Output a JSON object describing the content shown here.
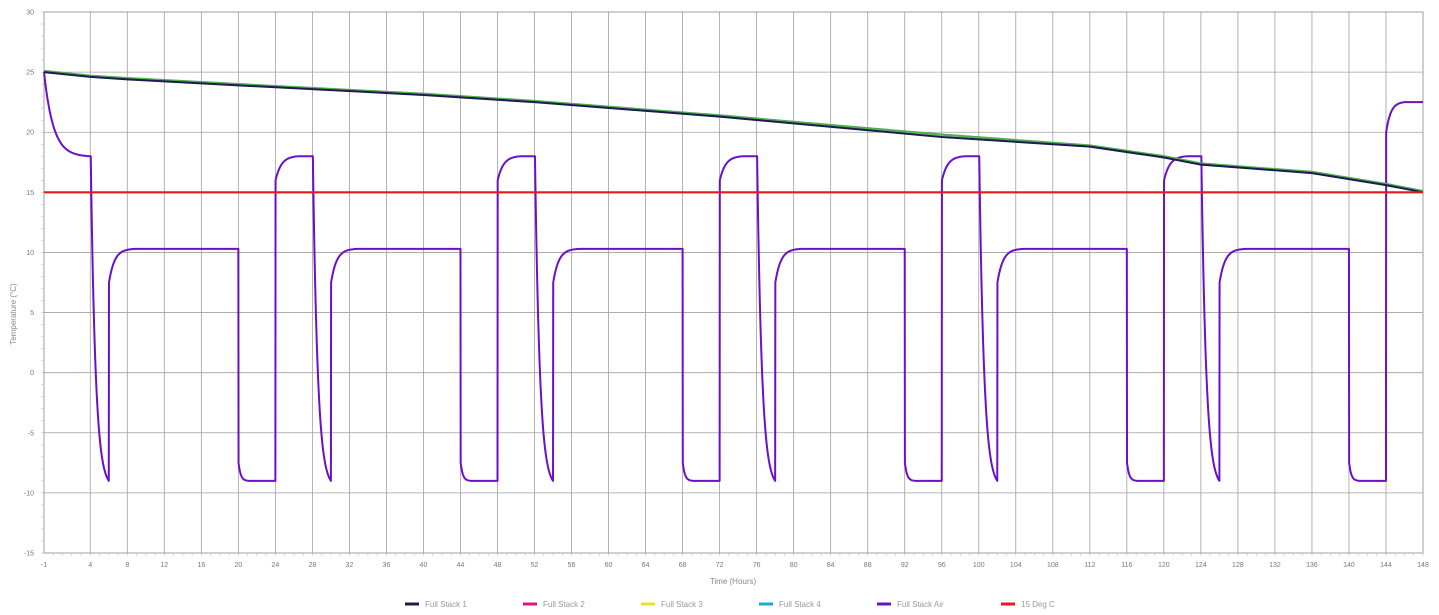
{
  "chart_data": {
    "type": "line",
    "title": "",
    "xlabel": "Time (Hours)",
    "ylabel": "Temperature (°C)",
    "xlim": [
      -1,
      148
    ],
    "ylim": [
      -15,
      30
    ],
    "x_ticks": [
      "-1",
      "4",
      "8",
      "12",
      "16",
      "20",
      "24",
      "28",
      "32",
      "36",
      "40",
      "44",
      "48",
      "52",
      "56",
      "60",
      "64",
      "68",
      "72",
      "76",
      "80",
      "84",
      "88",
      "92",
      "96",
      "100",
      "104",
      "108",
      "112",
      "116",
      "120",
      "124",
      "128",
      "132",
      "136",
      "140",
      "144",
      "148"
    ],
    "y_ticks": [
      "30",
      "25",
      "20",
      "15",
      "10",
      "5",
      "0",
      "-5",
      "-10",
      "-15"
    ],
    "grid": true,
    "legend_position": "bottom",
    "legend": [
      {
        "name": "Full Stack 1",
        "color": "#1f1a4e"
      },
      {
        "name": "Full Stack 2",
        "color": "#e0147c"
      },
      {
        "name": "Full Stack 3",
        "color": "#f0e020"
      },
      {
        "name": "Full Stack 4",
        "color": "#1aa8d8"
      },
      {
        "name": "Full Stack Air",
        "color": "#6a10c8"
      },
      {
        "name": "15 Deg C",
        "color": "#e41a1c"
      }
    ],
    "stack_green": {
      "color": "#4caf50",
      "points": [
        [
          -1,
          25.1
        ],
        [
          4,
          24.7
        ],
        [
          8,
          24.5
        ],
        [
          20,
          24.0
        ],
        [
          40,
          23.2
        ],
        [
          52,
          22.6
        ],
        [
          72,
          21.4
        ],
        [
          96,
          19.8
        ],
        [
          112,
          18.9
        ],
        [
          120,
          18.0
        ],
        [
          124,
          17.4
        ],
        [
          136,
          16.7
        ],
        [
          144,
          15.7
        ],
        [
          148,
          15.1
        ]
      ]
    },
    "stack_dark": {
      "color": "#1f1a4e",
      "points": [
        [
          -1,
          25.0
        ],
        [
          4,
          24.6
        ],
        [
          8,
          24.4
        ],
        [
          20,
          23.9
        ],
        [
          40,
          23.1
        ],
        [
          52,
          22.5
        ],
        [
          72,
          21.3
        ],
        [
          96,
          19.6
        ],
        [
          112,
          18.8
        ],
        [
          120,
          17.9
        ],
        [
          124,
          17.3
        ],
        [
          136,
          16.6
        ],
        [
          144,
          15.6
        ],
        [
          148,
          15.0
        ]
      ]
    },
    "reference_line": {
      "name": "15 Deg C",
      "value": 15,
      "color": "#e41a1c"
    },
    "air_cycle": {
      "color": "#6a10c8",
      "period_hours": 24,
      "warm_start": 16,
      "warm_end": 18,
      "steady": 10.3,
      "low": -9,
      "high_start": 7.5,
      "cold_start": -7.5,
      "cycle_starts": [
        0,
        24,
        48,
        72,
        96,
        120
      ],
      "initial_start": [
        -1,
        25
      ],
      "initial_decay_to": 18,
      "final_rise": {
        "start_hour": 144,
        "from": 20,
        "to": 22.5
      }
    }
  }
}
